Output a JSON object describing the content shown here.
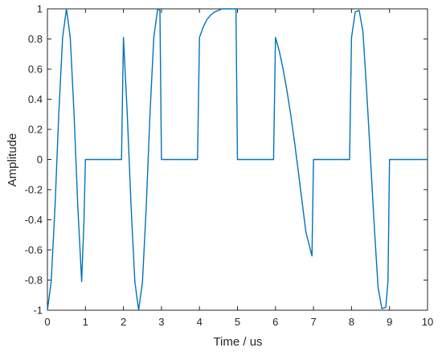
{
  "chart_data": {
    "type": "line",
    "title": "",
    "xlabel": "Time / us",
    "ylabel": "Amplitude",
    "xlim": [
      0,
      10
    ],
    "ylim": [
      -1,
      1
    ],
    "xticks": [
      0,
      1,
      2,
      3,
      4,
      5,
      6,
      7,
      8,
      9,
      10
    ],
    "yticks": [
      -1,
      -0.8,
      -0.6,
      -0.4,
      -0.2,
      0,
      0.2,
      0.4,
      0.6,
      0.8,
      1
    ],
    "xtick_labels": [
      "0",
      "1",
      "2",
      "3",
      "4",
      "5",
      "6",
      "7",
      "8",
      "9",
      "10"
    ],
    "ytick_labels": [
      "-1",
      "-0.8",
      "-0.6",
      "-0.4",
      "-0.2",
      "0",
      "0.2",
      "0.4",
      "0.6",
      "0.8",
      "1"
    ],
    "grid": false,
    "line_color": "#0072BD",
    "series": [
      {
        "x": [
          0,
          0.1,
          0.2,
          0.3,
          0.4,
          0.5,
          0.6,
          0.7,
          0.8,
          0.9,
          0.96,
          1.0,
          1.95,
          2.0,
          2.1,
          2.2,
          2.3,
          2.4,
          2.5,
          2.6,
          2.7,
          2.8,
          2.9,
          2.96,
          3.0,
          3.95,
          4.0,
          4.1,
          4.2,
          4.3,
          4.4,
          4.5,
          4.6,
          4.7,
          4.8,
          4.9,
          4.96,
          5.0,
          5.95,
          6.0,
          6.1,
          6.2,
          6.3,
          6.4,
          6.5,
          6.6,
          6.7,
          6.8,
          6.96,
          7.0,
          7.95,
          8.0,
          8.1,
          8.2,
          8.3,
          8.4,
          8.5,
          8.6,
          8.7,
          8.8,
          8.9,
          8.96,
          9.0,
          10.0
        ],
        "y": [
          -1,
          -0.81,
          -0.31,
          0.31,
          0.81,
          1.0,
          0.81,
          0.31,
          -0.31,
          -0.81,
          -0.42,
          0,
          0,
          0.81,
          0.31,
          -0.31,
          -0.81,
          -1.0,
          -0.81,
          -0.31,
          0.31,
          0.81,
          1.0,
          0.99,
          0,
          0,
          0.81,
          0.88,
          0.93,
          0.96,
          0.98,
          0.99,
          1.0,
          1.0,
          1.0,
          1.0,
          1.0,
          0,
          0,
          0.81,
          0.72,
          0.6,
          0.46,
          0.3,
          0.12,
          -0.08,
          -0.28,
          -0.48,
          -0.64,
          0,
          0,
          0.81,
          0.98,
          0.99,
          0.85,
          0.45,
          0.0,
          -0.45,
          -0.85,
          -0.99,
          -0.98,
          -0.81,
          0,
          0
        ]
      }
    ]
  }
}
